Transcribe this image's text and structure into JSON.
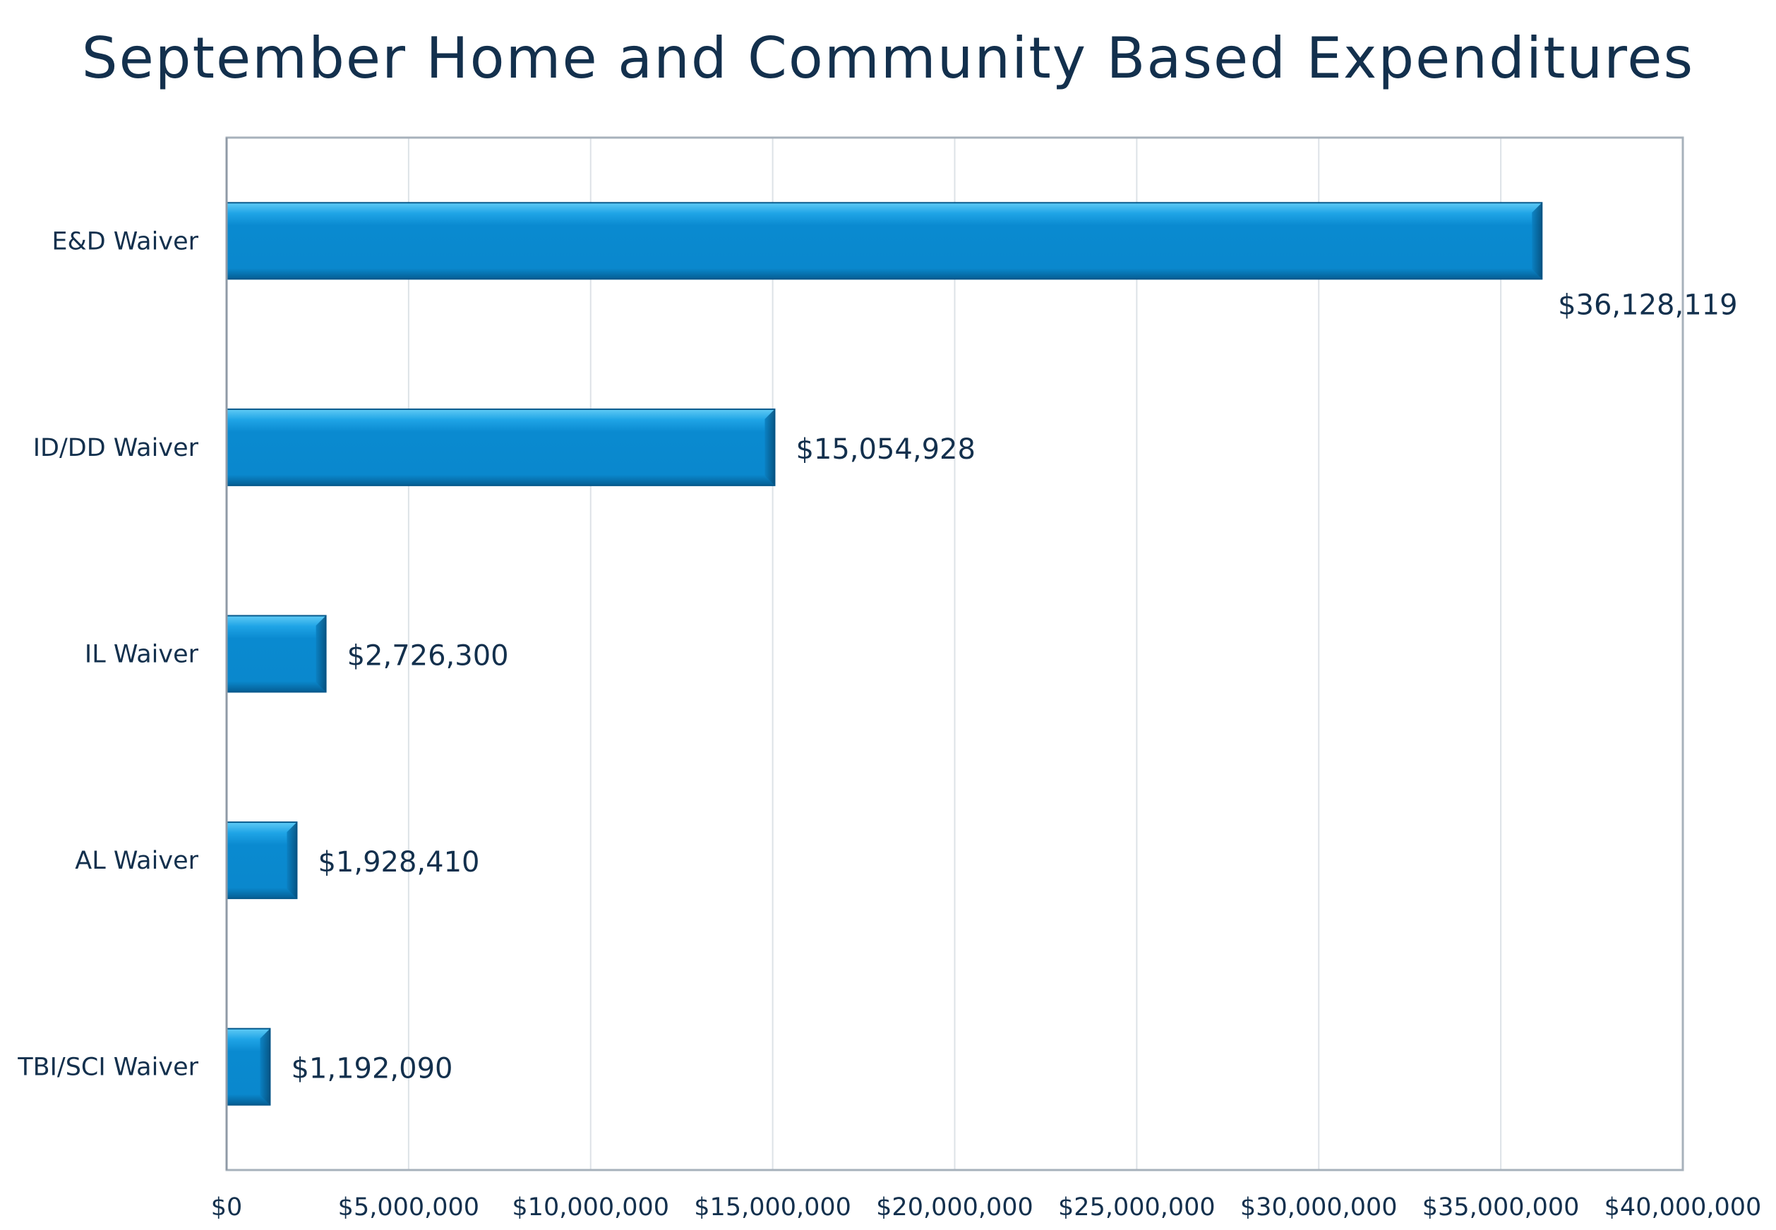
{
  "chart_data": {
    "type": "bar",
    "orientation": "horizontal",
    "title": "September Home and Community Based Expenditures",
    "xlabel": "",
    "ylabel": "",
    "categories": [
      "E&D Waiver",
      "ID/DD Waiver",
      "IL Waiver",
      "AL Waiver",
      "TBI/SCI Waiver"
    ],
    "values": [
      36128119,
      15054928,
      2726300,
      1928410,
      1192090
    ],
    "data_labels": [
      "$36,128,119",
      "$15,054,928",
      "$2,726,300",
      "$1,928,410",
      "$1,192,090"
    ],
    "xlim": [
      0,
      40000000
    ],
    "ticks": [
      0,
      5000000,
      10000000,
      15000000,
      20000000,
      25000000,
      30000000,
      35000000,
      40000000
    ],
    "tick_labels": [
      "$0",
      "$5,000,000",
      "$10,000,000",
      "$15,000,000",
      "$20,000,000",
      "$25,000,000",
      "$30,000,000",
      "$35,000,000",
      "$40,000,000"
    ],
    "grid": "vertical",
    "legend": "none",
    "colors": {
      "bar": "#0a8ad0",
      "bar_highlight": "#5fcaf5",
      "bar_shadow": "#055e94",
      "text": "#13304d",
      "grid": "#dde2e7",
      "frame": "#a7b1bb"
    }
  }
}
